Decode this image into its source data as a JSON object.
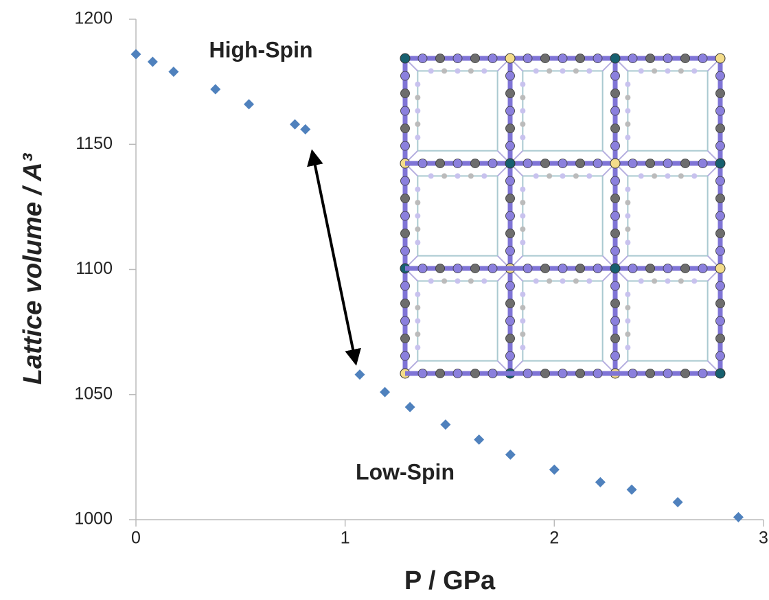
{
  "chart_data": {
    "type": "scatter",
    "x_label": "P / GPa",
    "y_label": "Lattice volume / A³",
    "annotations": [
      "High-Spin",
      "Low-Spin"
    ],
    "series": [
      {
        "color": "#4f81bd",
        "x": [
          0,
          0.08,
          0.18,
          0.38,
          0.54,
          0.76,
          0.81,
          1.07,
          1.19,
          1.31,
          1.48,
          1.64,
          1.79,
          2.0,
          2.22,
          2.37,
          2.59,
          2.88
        ],
        "values": [
          1186,
          1183,
          1179,
          1172,
          1166,
          1158,
          1156,
          1058,
          1051,
          1045,
          1038,
          1032,
          1026,
          1020,
          1015,
          1012,
          1007,
          1001
        ]
      }
    ],
    "xlim": [
      0,
      3
    ],
    "xticks": [
      0,
      1,
      2,
      3
    ],
    "ylim": [
      1000,
      1200
    ],
    "yticks": [
      1000,
      1050,
      1100,
      1150,
      1200
    ]
  }
}
